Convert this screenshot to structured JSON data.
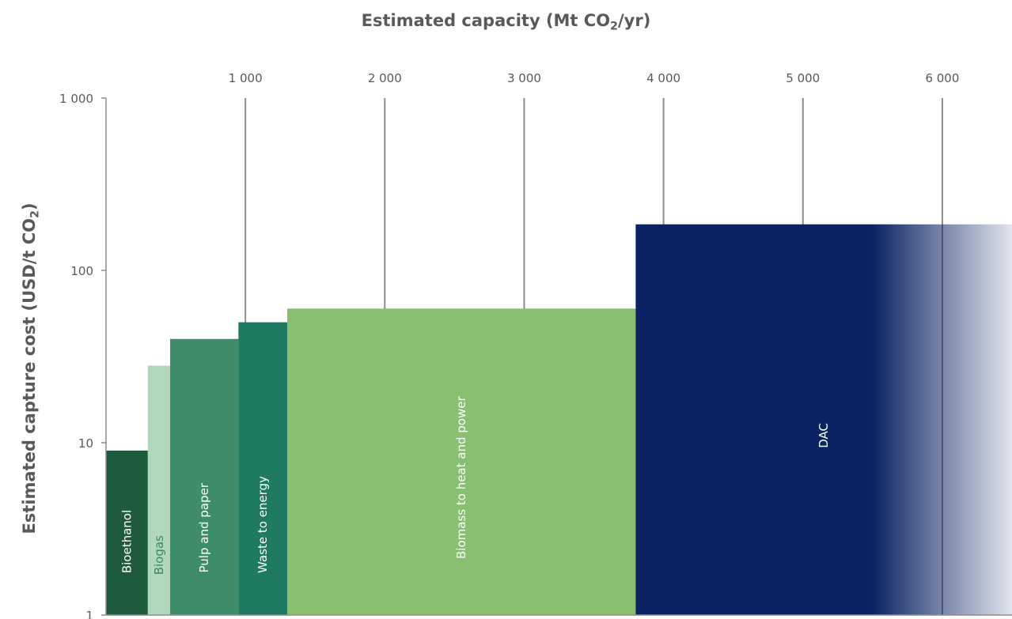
{
  "chart_data": {
    "type": "bar",
    "subtype": "cost-supply curve (variable-width bars)",
    "title": {
      "main": "Estimated capacity (Mt CO",
      "sub": "2",
      "tail": "/yr)"
    },
    "ylabel": {
      "main": "Estimated capture cost (USD/t CO",
      "sub": "2",
      "tail": ")"
    },
    "x_axis": {
      "position": "top",
      "range": [
        0,
        6500
      ],
      "ticks": [
        1000,
        2000,
        3000,
        4000,
        5000,
        6000
      ],
      "tick_labels": [
        "1 000",
        "2 000",
        "3 000",
        "4 000",
        "5 000",
        "6 000"
      ]
    },
    "y_axis": {
      "scale": "log",
      "range": [
        1,
        1000
      ],
      "ticks": [
        1,
        10,
        100,
        1000
      ],
      "tick_labels": [
        "1",
        "10",
        "100",
        "1 000"
      ]
    },
    "grid": "vertical",
    "series": [
      {
        "label": "Bioethanol",
        "x_start": 0,
        "x_end": 300,
        "cost": 9,
        "color": "#1e5a3c",
        "label_color": "#ffffff"
      },
      {
        "label": "Biogas",
        "x_start": 300,
        "x_end": 460,
        "cost": 28,
        "color": "#b2d8bb",
        "label_color": "#3c8a5a"
      },
      {
        "label": "Pulp and paper",
        "x_start": 460,
        "x_end": 950,
        "cost": 40,
        "color": "#3f8c68",
        "label_color": "#ffffff"
      },
      {
        "label": "Waste to energy",
        "x_start": 950,
        "x_end": 1300,
        "cost": 50,
        "color": "#1e7a60",
        "label_color": "#ffffff"
      },
      {
        "label": "Biomass to heat and power",
        "x_start": 1300,
        "x_end": 3800,
        "cost": 60,
        "color": "#88bf70",
        "label_color": "#ffffff"
      },
      {
        "label": "DAC",
        "x_start": 3800,
        "x_end": 6500,
        "cost": 185,
        "color": "#0b2362",
        "label_color": "#ffffff",
        "fade_from": 5500
      }
    ]
  }
}
